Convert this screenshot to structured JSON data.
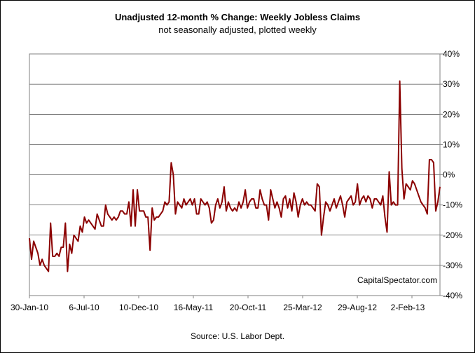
{
  "chart_data": {
    "type": "line",
    "title": "Unadjusted 12-month %  Change: Weekly Jobless Claims",
    "subtitle": "not seasonally adjusted, plotted weekly",
    "source": "Source: U.S. Labor Dept.",
    "watermark": "CapitalSpectator.com",
    "y_axis_side": "right",
    "ylim": [
      -40,
      40
    ],
    "y_ticks": [
      40,
      30,
      20,
      10,
      0,
      -10,
      -20,
      -30,
      -40
    ],
    "y_tick_labels": [
      "40%",
      "30%",
      "20%",
      "10%",
      "0%",
      "-10%",
      "-20%",
      "-30%",
      "-40%"
    ],
    "x_tick_labels": [
      "30-Jan-10",
      "6-Jul-10",
      "10-Dec-10",
      "16-May-11",
      "20-Oct-11",
      "25-Mar-12",
      "29-Aug-12",
      "2-Feb-13"
    ],
    "grid": "horizontal",
    "line_color": "#8b0000",
    "series": [
      {
        "values": [
          -21,
          -28,
          -22,
          -24,
          -26,
          -30,
          -28,
          -30,
          -31,
          -32,
          -16,
          -27,
          -27,
          -26,
          -27,
          -24,
          -24,
          -16,
          -32,
          -23,
          -26,
          -20,
          -21,
          -22,
          -17,
          -19,
          -14,
          -16,
          -15,
          -16,
          -17,
          -18,
          -13,
          -15,
          -17,
          -17,
          -10,
          -13,
          -14,
          -15,
          -14,
          -15,
          -14,
          -12,
          -12,
          -13,
          -13,
          -9,
          -17,
          -5,
          -17,
          -5,
          -12,
          -12,
          -12,
          -14,
          -14,
          -25,
          -11,
          -15,
          -14,
          -14,
          -13,
          -12,
          -9,
          -10,
          -9,
          4,
          0,
          -13,
          -9,
          -10,
          -11,
          -8,
          -10,
          -9,
          -8,
          -10,
          -8,
          -13,
          -13,
          -8,
          -9,
          -10,
          -9,
          -11,
          -16,
          -15,
          -10,
          -8,
          -11,
          -9,
          -4,
          -12,
          -9,
          -11,
          -12,
          -11,
          -12,
          -9,
          -11,
          -9,
          -5,
          -11,
          -9,
          -8,
          -8,
          -11,
          -11,
          -5,
          -8,
          -10,
          -10,
          -15,
          -5,
          -8,
          -11,
          -9,
          -11,
          -14,
          -8,
          -7,
          -11,
          -8,
          -12,
          -6,
          -9,
          -14,
          -10,
          -8,
          -10,
          -9,
          -10,
          -10,
          -11,
          -12,
          -3,
          -4,
          -20,
          -14,
          -9,
          -10,
          -12,
          -10,
          -8,
          -11,
          -9,
          -7,
          -10,
          -14,
          -9,
          -8,
          -7,
          -10,
          -9,
          -3,
          -10,
          -8,
          -7,
          -9,
          -7,
          -8,
          -11,
          -8,
          -8,
          -9,
          -10,
          -7,
          -14,
          -19,
          1,
          -10,
          -9,
          -10,
          -10,
          31,
          2,
          -8,
          -3,
          -4,
          -5,
          -2,
          -3,
          -5,
          -7,
          -9,
          -10,
          -11,
          -13,
          5,
          5,
          4,
          -12,
          -9,
          -4
        ]
      }
    ]
  }
}
